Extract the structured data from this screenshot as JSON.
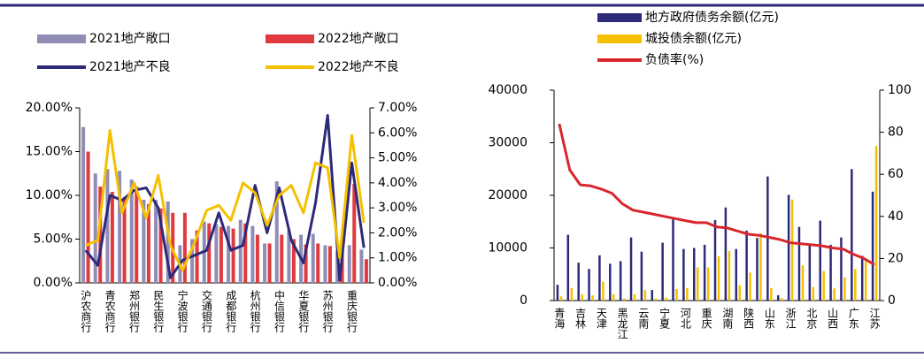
{
  "chart_data": [
    {
      "type": "combo",
      "categories": [
        "沪农商行",
        null,
        "青农商行",
        null,
        "郑州银行",
        null,
        "民生银行",
        null,
        "宁波银行",
        null,
        "交通银行",
        null,
        "成都银行",
        null,
        "杭州银行",
        null,
        "中信银行",
        null,
        "华夏银行",
        null,
        "苏州银行",
        null,
        "重庆银行",
        null
      ],
      "series": [
        {
          "name": "2021地产敞口",
          "color": "#8f8db6",
          "type": "bar",
          "axis": "y",
          "values": [
            17.8,
            12.5,
            13.0,
            12.8,
            11.8,
            9.5,
            9.5,
            9.3,
            4.3,
            5.0,
            7.0,
            6.7,
            6.5,
            7.2,
            6.5,
            4.5,
            11.6,
            6.0,
            5.5,
            5.6,
            4.3,
            3.7,
            4.3,
            3.8
          ]
        },
        {
          "name": "2022地产敞口",
          "color": "#e03a3e",
          "type": "bar",
          "axis": "y",
          "values": [
            15.0,
            11.0,
            10.4,
            9.8,
            11.0,
            9.0,
            8.5,
            8.0,
            8.0,
            6.0,
            6.8,
            6.4,
            6.2,
            6.8,
            5.5,
            4.5,
            5.5,
            5.0,
            4.4,
            4.5,
            4.2,
            4.0,
            11.3,
            2.7
          ]
        },
        {
          "name": "2021地产不良",
          "color": "#2e2a7a",
          "type": "line",
          "axis": "y2",
          "values": [
            1.3,
            0.7,
            3.5,
            3.3,
            3.7,
            3.8,
            3.0,
            0.2,
            0.9,
            1.1,
            1.3,
            2.8,
            1.3,
            1.5,
            3.9,
            2.0,
            3.8,
            1.7,
            0.8,
            3.2,
            6.7,
            0.1,
            4.8,
            1.4
          ]
        },
        {
          "name": "2022地产不良",
          "color": "#f5c000",
          "type": "line",
          "axis": "y2",
          "values": [
            1.5,
            1.7,
            6.1,
            2.8,
            4.0,
            2.6,
            4.3,
            1.5,
            0.5,
            1.6,
            2.9,
            3.1,
            2.5,
            4.0,
            3.6,
            2.3,
            3.5,
            3.9,
            2.8,
            4.8,
            4.6,
            1.0,
            5.9,
            2.4
          ]
        }
      ],
      "ylim": [
        0,
        20
      ],
      "yticks": [
        {
          "value": 0,
          "label": "0.00%"
        },
        {
          "value": 5,
          "label": "5.00%"
        },
        {
          "value": 10,
          "label": "10.00%"
        },
        {
          "value": 15,
          "label": "15.00%"
        },
        {
          "value": 20,
          "label": "20.00%"
        }
      ],
      "y2lim": [
        0,
        7
      ],
      "y2ticks": [
        {
          "value": 0,
          "label": "0.00%"
        },
        {
          "value": 1,
          "label": "1.00%"
        },
        {
          "value": 2,
          "label": "2.00%"
        },
        {
          "value": 3,
          "label": "3.00%"
        },
        {
          "value": 4,
          "label": "4.00%"
        },
        {
          "value": 5,
          "label": "5.00%"
        },
        {
          "value": 6,
          "label": "6.00%"
        },
        {
          "value": 7,
          "label": "7.00%"
        }
      ]
    },
    {
      "type": "combo",
      "categories": [
        "青海",
        null,
        "吉林",
        null,
        "天津",
        null,
        "黑龙江",
        null,
        "云南",
        null,
        "宁夏",
        null,
        "河北",
        null,
        "重庆",
        null,
        "湖南",
        null,
        "陕西",
        null,
        "山东",
        null,
        "浙江",
        null,
        "北京",
        null,
        "山西",
        null,
        "广东",
        null,
        "江苏"
      ],
      "series": [
        {
          "name": "地方政府债务余额(亿元)",
          "color": "#2e2a7a",
          "type": "bar",
          "axis": "y",
          "values": [
            3000,
            12500,
            7200,
            6000,
            8600,
            7000,
            7500,
            12000,
            9300,
            2000,
            11000,
            15700,
            9800,
            10000,
            10600,
            15300,
            17700,
            9800,
            13300,
            11900,
            23600,
            1000,
            20100,
            14000,
            10600,
            15200,
            10600,
            12000,
            25000,
            8500,
            20700
          ]
        },
        {
          "name": "城投债余额(亿元)",
          "color": "#f5c000",
          "type": "bar",
          "axis": "y",
          "values": [
            800,
            2400,
            1200,
            1000,
            3600,
            1200,
            400,
            1200,
            2000,
            400,
            600,
            2200,
            2400,
            6300,
            6300,
            8400,
            9400,
            2900,
            5300,
            12800,
            2400,
            500,
            19200,
            6700,
            2600,
            5600,
            2300,
            4400,
            6000,
            7500,
            29400
          ]
        },
        {
          "name": "负债率(%)",
          "color": "#d9262c",
          "type": "line",
          "axis": "y2",
          "values": [
            84,
            62,
            55,
            54.5,
            53,
            51,
            46,
            43,
            42,
            41,
            40,
            39,
            38,
            37,
            37,
            35,
            34.5,
            33,
            31.5,
            31,
            30,
            29,
            27.5,
            27,
            26.5,
            26,
            25,
            24.5,
            22,
            20,
            17
          ]
        }
      ],
      "ylim": [
        0,
        40000
      ],
      "yticks": [
        0,
        10000,
        20000,
        30000,
        40000
      ],
      "y2lim": [
        0,
        100
      ],
      "y2ticks": [
        0,
        20,
        40,
        60,
        80,
        100
      ]
    }
  ]
}
